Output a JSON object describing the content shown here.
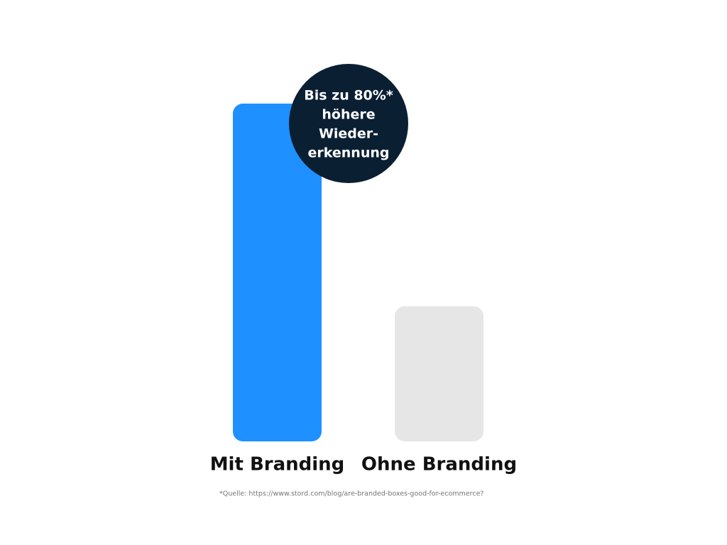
{
  "chart_data": {
    "type": "bar",
    "categories": [
      "Mit Branding",
      "Ohne Branding"
    ],
    "values": [
      100,
      40
    ],
    "colors": [
      "#1e90ff",
      "#e6e6e6"
    ],
    "annotation": [
      "Bis zu 80%*",
      "höhere",
      "Wieder-",
      "erkennung"
    ],
    "annotation_color": "#0b1f33",
    "source": "*Quelle: https://www.stord.com/blog/are-branded-boxes-good-for-ecommerce?"
  }
}
